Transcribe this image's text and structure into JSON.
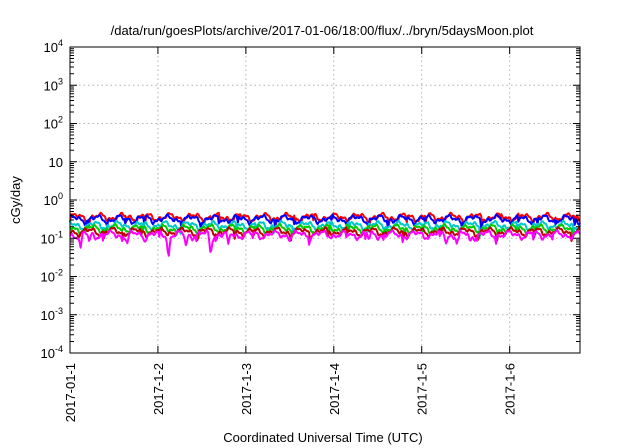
{
  "chart_data": {
    "type": "line",
    "title": "/data/run/goesPlots/archive/2017-01-06/18:00/flux/../bryn/5daysMoon.plot",
    "xlabel": "Coordinated Universal Time (UTC)",
    "ylabel": "cGy/day",
    "yscale": "log",
    "ylim": [
      0.0001,
      10000
    ],
    "xlim": [
      0,
      5.8
    ],
    "grid": true,
    "y_ticks": [
      {
        "value": 0.0001,
        "base": "10",
        "exp": "-4"
      },
      {
        "value": 0.001,
        "base": "10",
        "exp": "-3"
      },
      {
        "value": 0.01,
        "base": "10",
        "exp": "-2"
      },
      {
        "value": 0.1,
        "base": "10",
        "exp": "-1"
      },
      {
        "value": 1,
        "base": "10",
        "exp": "0"
      },
      {
        "value": 10,
        "base": "10",
        "exp": ""
      },
      {
        "value": 100,
        "base": "10",
        "exp": "2"
      },
      {
        "value": 1000,
        "base": "10",
        "exp": "3"
      },
      {
        "value": 10000,
        "base": "10",
        "exp": "4"
      }
    ],
    "x_ticks": [
      {
        "value": 0,
        "label": "2017-01-1"
      },
      {
        "value": 1,
        "label": "2017-1-2"
      },
      {
        "value": 2,
        "label": "2017-1-3"
      },
      {
        "value": 3,
        "label": "2017-1-4"
      },
      {
        "value": 4,
        "label": "2017-1-5"
      },
      {
        "value": 5,
        "label": "2017-1-6"
      }
    ],
    "series": [
      {
        "color": "#ff0000",
        "base": 0.36,
        "dips": []
      },
      {
        "color": "#0000ff",
        "base": 0.32,
        "dips": []
      },
      {
        "color": "#00c8c8",
        "base": 0.22,
        "dips": []
      },
      {
        "color": "#00cc00",
        "base": 0.18,
        "dips": []
      },
      {
        "color": "#c00000",
        "base": 0.15,
        "dips": []
      },
      {
        "color": "#ff00ff",
        "base": 0.125,
        "dips": [
          {
            "x": 0.12,
            "value": 0.055
          },
          {
            "x": 0.22,
            "value": 0.08
          },
          {
            "x": 0.65,
            "value": 0.07
          },
          {
            "x": 0.85,
            "value": 0.08
          },
          {
            "x": 1.12,
            "value": 0.028
          },
          {
            "x": 1.32,
            "value": 0.06
          },
          {
            "x": 1.6,
            "value": 0.034
          },
          {
            "x": 1.8,
            "value": 0.07
          },
          {
            "x": 2.5,
            "value": 0.085
          },
          {
            "x": 3.4,
            "value": 0.09
          },
          {
            "x": 4.28,
            "value": 0.07
          },
          {
            "x": 4.4,
            "value": 0.07
          },
          {
            "x": 4.55,
            "value": 0.08
          }
        ]
      }
    ]
  }
}
